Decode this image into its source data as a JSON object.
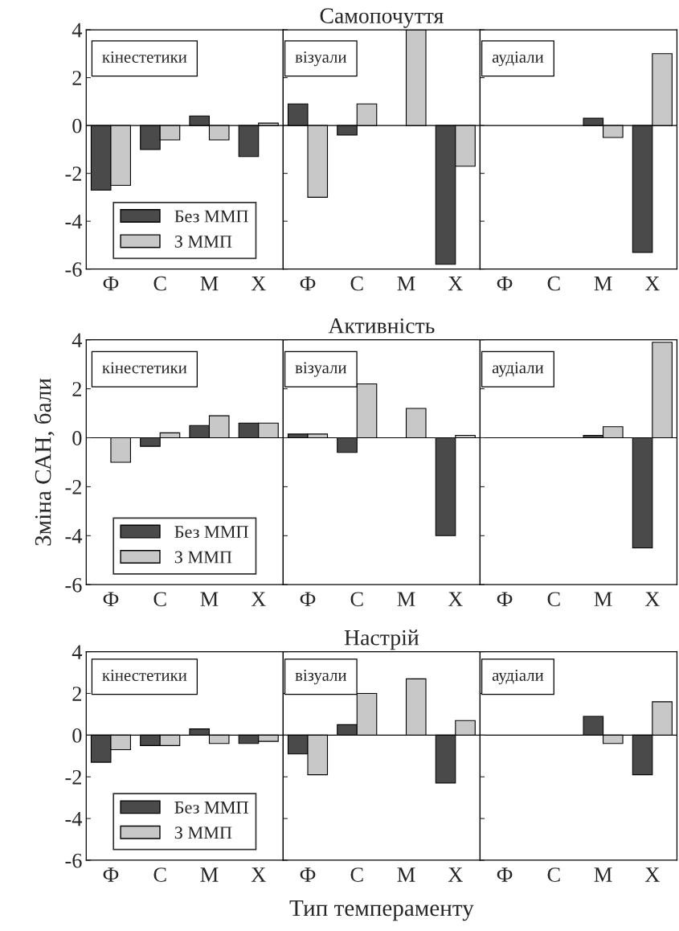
{
  "chart_data": [
    {
      "type": "bar",
      "categories": [
        "Ф",
        "С",
        "М",
        "Х"
      ],
      "annotations": [
        "кінестетики"
      ],
      "legend": "bottom",
      "ylim": [
        -6,
        4
      ],
      "yticks": [
        -6,
        -4,
        -2,
        0,
        2,
        4
      ],
      "ref_lines": [
        {
          "axis": "y",
          "value": 0
        }
      ],
      "series": [
        {
          "name": "Без ММП",
          "color": "#4a4a4a",
          "values": [
            -2.7,
            -1.0,
            0.4,
            -1.3
          ]
        },
        {
          "name": "З ММП",
          "color": "#c8c8c8",
          "values": [
            -2.5,
            -0.6,
            -0.6,
            0.1
          ]
        }
      ]
    },
    {
      "type": "bar",
      "title": "Самопочуття",
      "categories": [
        "Ф",
        "С",
        "М",
        "Х"
      ],
      "annotations": [
        "візуали"
      ],
      "ylim": [
        -6,
        4
      ],
      "yticks": [
        {
          "value": -6,
          "label": null
        },
        {
          "value": -4,
          "label": null
        },
        {
          "value": -2,
          "label": null
        },
        {
          "value": 0,
          "label": null
        },
        {
          "value": 2,
          "label": null
        },
        {
          "value": 4,
          "label": null
        }
      ],
      "tick_labels": "x",
      "ref_lines": [
        {
          "axis": "y",
          "value": 0
        }
      ],
      "series": [
        {
          "color": "#4a4a4a",
          "values": [
            0.9,
            -0.4,
            null,
            -5.8
          ]
        },
        {
          "color": "#c8c8c8",
          "values": [
            -3.0,
            0.9,
            4.0,
            -1.7
          ]
        }
      ]
    },
    {
      "type": "bar",
      "categories": [
        "Ф",
        "С",
        "М",
        "Х"
      ],
      "annotations": [
        "аудіали"
      ],
      "ylim": [
        -6,
        4
      ],
      "yticks": [
        {
          "value": -6,
          "label": null
        },
        {
          "value": -4,
          "label": null
        },
        {
          "value": -2,
          "label": null
        },
        {
          "value": 0,
          "label": null
        },
        {
          "value": 2,
          "label": null
        },
        {
          "value": 4,
          "label": null
        }
      ],
      "tick_labels": "x",
      "ref_lines": [
        {
          "axis": "y",
          "value": 0
        }
      ],
      "series": [
        {
          "color": "#4a4a4a",
          "values": [
            null,
            null,
            0.3,
            -5.3
          ]
        },
        {
          "color": "#c8c8c8",
          "values": [
            null,
            null,
            -0.5,
            3.0
          ]
        }
      ]
    },
    {
      "type": "bar",
      "categories": [
        "Ф",
        "С",
        "М",
        "Х"
      ],
      "annotations": [
        "кінестетики"
      ],
      "ylabel": "Зміна САН, бали",
      "legend": "bottom",
      "ylim": [
        -6,
        4
      ],
      "yticks": [
        -6,
        -4,
        -2,
        0,
        2,
        4
      ],
      "ref_lines": [
        {
          "axis": "y",
          "value": 0
        }
      ],
      "series": [
        {
          "name": "Без ММП",
          "color": "#4a4a4a",
          "values": [
            null,
            -0.35,
            0.5,
            0.6
          ]
        },
        {
          "name": "З ММП",
          "color": "#c8c8c8",
          "values": [
            -1.0,
            0.2,
            0.9,
            0.6
          ]
        }
      ]
    },
    {
      "type": "bar",
      "title": "Активність",
      "categories": [
        "Ф",
        "С",
        "М",
        "Х"
      ],
      "annotations": [
        "візуали"
      ],
      "ylim": [
        -6,
        4
      ],
      "yticks": [
        {
          "value": -6,
          "label": null
        },
        {
          "value": -4,
          "label": null
        },
        {
          "value": -2,
          "label": null
        },
        {
          "value": 0,
          "label": null
        },
        {
          "value": 2,
          "label": null
        },
        {
          "value": 4,
          "label": null
        }
      ],
      "tick_labels": "x",
      "ref_lines": [
        {
          "axis": "y",
          "value": 0
        }
      ],
      "series": [
        {
          "color": "#4a4a4a",
          "values": [
            0.15,
            -0.6,
            null,
            -4.0
          ]
        },
        {
          "color": "#c8c8c8",
          "values": [
            0.15,
            2.2,
            1.2,
            0.1
          ]
        }
      ]
    },
    {
      "type": "bar",
      "categories": [
        "Ф",
        "С",
        "М",
        "Х"
      ],
      "annotations": [
        "аудіали"
      ],
      "ylim": [
        -6,
        4
      ],
      "yticks": [
        {
          "value": -6,
          "label": null
        },
        {
          "value": -4,
          "label": null
        },
        {
          "value": -2,
          "label": null
        },
        {
          "value": 0,
          "label": null
        },
        {
          "value": 2,
          "label": null
        },
        {
          "value": 4,
          "label": null
        }
      ],
      "tick_labels": "x",
      "ref_lines": [
        {
          "axis": "y",
          "value": 0
        }
      ],
      "series": [
        {
          "color": "#4a4a4a",
          "values": [
            null,
            null,
            0.1,
            -4.5
          ]
        },
        {
          "color": "#c8c8c8",
          "values": [
            null,
            null,
            0.45,
            3.9
          ]
        }
      ]
    },
    {
      "type": "bar",
      "categories": [
        "Ф",
        "С",
        "М",
        "Х"
      ],
      "annotations": [
        "кінестетики"
      ],
      "legend": "bottom",
      "ylim": [
        -6,
        4
      ],
      "yticks": [
        -6,
        -4,
        -2,
        0,
        2,
        4
      ],
      "ref_lines": [
        {
          "axis": "y",
          "value": 0
        }
      ],
      "series": [
        {
          "name": "Без ММП",
          "color": "#4a4a4a",
          "values": [
            -1.3,
            -0.5,
            0.3,
            -0.4
          ]
        },
        {
          "name": "З ММП",
          "color": "#c8c8c8",
          "values": [
            -0.7,
            -0.5,
            -0.4,
            -0.3
          ]
        }
      ]
    },
    {
      "type": "bar",
      "title": "Настрій",
      "xlabel": "Тип темпераменту",
      "categories": [
        "Ф",
        "С",
        "М",
        "Х"
      ],
      "annotations": [
        "візуали"
      ],
      "ylim": [
        -6,
        4
      ],
      "yticks": [
        {
          "value": -6,
          "label": null
        },
        {
          "value": -4,
          "label": null
        },
        {
          "value": -2,
          "label": null
        },
        {
          "value": 0,
          "label": null
        },
        {
          "value": 2,
          "label": null
        },
        {
          "value": 4,
          "label": null
        }
      ],
      "tick_labels": "x",
      "ref_lines": [
        {
          "axis": "y",
          "value": 0
        }
      ],
      "series": [
        {
          "color": "#4a4a4a",
          "values": [
            -0.9,
            0.5,
            null,
            -2.3
          ]
        },
        {
          "color": "#c8c8c8",
          "values": [
            -1.9,
            2.0,
            2.7,
            0.7
          ]
        }
      ]
    },
    {
      "type": "bar",
      "categories": [
        "Ф",
        "С",
        "М",
        "Х"
      ],
      "annotations": [
        "аудіали"
      ],
      "ylim": [
        -6,
        4
      ],
      "yticks": [
        {
          "value": -6,
          "label": null
        },
        {
          "value": -4,
          "label": null
        },
        {
          "value": -2,
          "label": null
        },
        {
          "value": 0,
          "label": null
        },
        {
          "value": 2,
          "label": null
        },
        {
          "value": 4,
          "label": null
        }
      ],
      "tick_labels": "x",
      "ref_lines": [
        {
          "axis": "y",
          "value": 0
        }
      ],
      "series": [
        {
          "color": "#4a4a4a",
          "values": [
            null,
            null,
            0.9,
            -1.9
          ]
        },
        {
          "color": "#c8c8c8",
          "values": [
            null,
            null,
            -0.4,
            1.6
          ]
        }
      ]
    }
  ]
}
